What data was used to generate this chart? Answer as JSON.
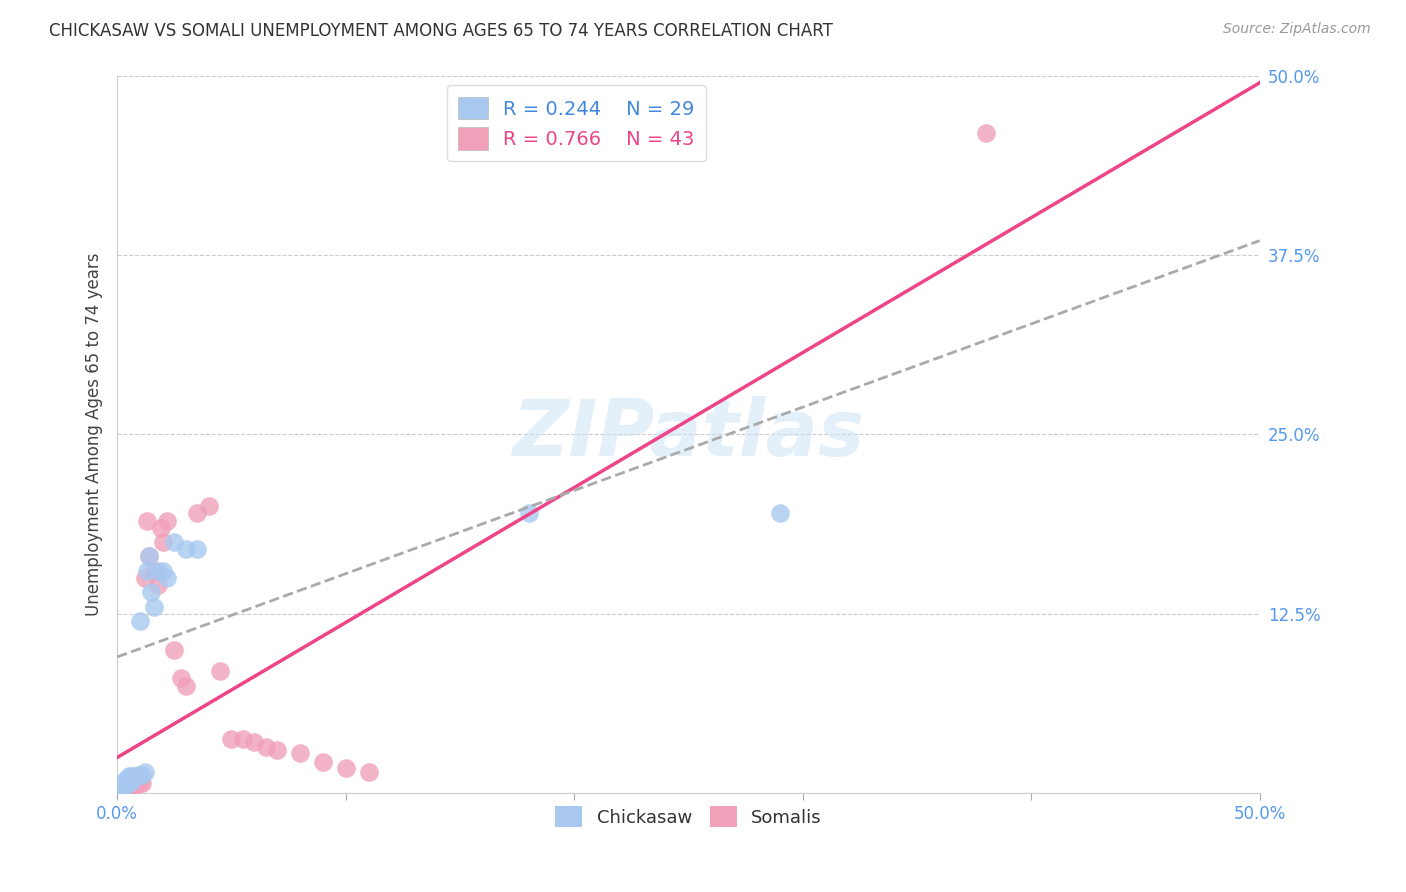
{
  "title": "CHICKASAW VS SOMALI UNEMPLOYMENT AMONG AGES 65 TO 74 YEARS CORRELATION CHART",
  "source": "Source: ZipAtlas.com",
  "ylabel": "Unemployment Among Ages 65 to 74 years",
  "xlim": [
    0.0,
    0.5
  ],
  "ylim": [
    0.0,
    0.5
  ],
  "yticks": [
    0.0,
    0.125,
    0.25,
    0.375,
    0.5
  ],
  "ytick_labels": [
    "",
    "12.5%",
    "25.0%",
    "37.5%",
    "50.0%"
  ],
  "xtick_labels_left": "0.0%",
  "xtick_labels_right": "50.0%",
  "chickasaw_R": 0.244,
  "chickasaw_N": 29,
  "somali_R": 0.766,
  "somali_N": 43,
  "chickasaw_color": "#a8c8f0",
  "somali_color": "#f0a0b8",
  "chickasaw_line_color": "#4488dd",
  "somali_line_color": "#ee4488",
  "legend_label_1": "Chickasaw",
  "legend_label_2": "Somalis",
  "chickasaw_x": [
    0.0,
    0.001,
    0.002,
    0.003,
    0.003,
    0.004,
    0.004,
    0.005,
    0.005,
    0.006,
    0.006,
    0.007,
    0.008,
    0.009,
    0.01,
    0.011,
    0.012,
    0.013,
    0.014,
    0.015,
    0.016,
    0.018,
    0.02,
    0.022,
    0.025,
    0.03,
    0.035,
    0.18,
    0.29
  ],
  "chickasaw_y": [
    0.002,
    0.003,
    0.004,
    0.005,
    0.008,
    0.006,
    0.01,
    0.01,
    0.012,
    0.008,
    0.012,
    0.011,
    0.012,
    0.013,
    0.12,
    0.013,
    0.015,
    0.155,
    0.165,
    0.14,
    0.13,
    0.155,
    0.155,
    0.15,
    0.175,
    0.17,
    0.17,
    0.195,
    0.195
  ],
  "somali_x": [
    0.0,
    0.0,
    0.001,
    0.001,
    0.002,
    0.002,
    0.003,
    0.003,
    0.004,
    0.004,
    0.005,
    0.005,
    0.006,
    0.006,
    0.007,
    0.008,
    0.009,
    0.01,
    0.011,
    0.012,
    0.013,
    0.014,
    0.016,
    0.018,
    0.019,
    0.02,
    0.022,
    0.025,
    0.028,
    0.03,
    0.035,
    0.04,
    0.045,
    0.05,
    0.055,
    0.06,
    0.065,
    0.07,
    0.08,
    0.09,
    0.1,
    0.11,
    0.38
  ],
  "somali_y": [
    0.0,
    0.002,
    0.001,
    0.003,
    0.0,
    0.002,
    0.001,
    0.002,
    0.001,
    0.003,
    0.002,
    0.003,
    0.003,
    0.004,
    0.005,
    0.006,
    0.008,
    0.007,
    0.007,
    0.15,
    0.19,
    0.165,
    0.155,
    0.145,
    0.185,
    0.175,
    0.19,
    0.1,
    0.08,
    0.075,
    0.195,
    0.2,
    0.085,
    0.038,
    0.038,
    0.036,
    0.032,
    0.03,
    0.028,
    0.022,
    0.018,
    0.015,
    0.46
  ],
  "watermark": "ZIPatlas",
  "background_color": "#ffffff",
  "grid_color": "#cccccc",
  "chickasaw_line_start_x": 0.0,
  "chickasaw_line_start_y": 0.095,
  "chickasaw_line_end_x": 0.5,
  "chickasaw_line_end_y": 0.385,
  "somali_line_start_x": 0.0,
  "somali_line_start_y": 0.025,
  "somali_line_end_x": 0.5,
  "somali_line_end_y": 0.495
}
